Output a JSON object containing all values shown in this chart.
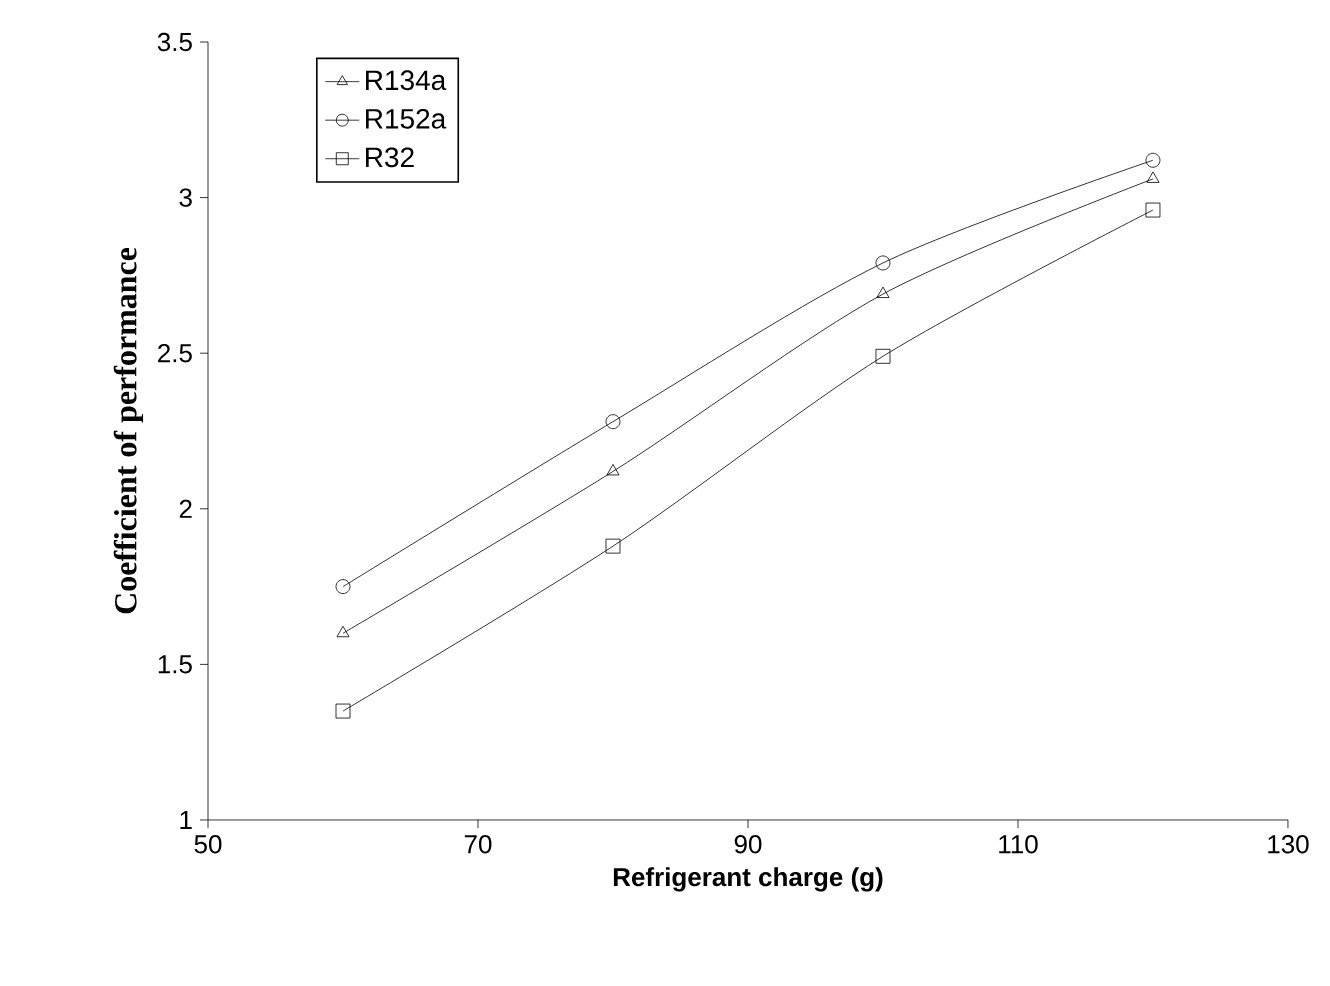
{
  "chart_data": {
    "type": "line",
    "xlabel": "Refrigerant charge (g)",
    "ylabel": "Coefficient of performance",
    "x": [
      60,
      80,
      100,
      120
    ],
    "series": [
      {
        "name": "R134a",
        "color": "#000000",
        "marker": "triangle",
        "values": [
          1.6,
          2.12,
          2.69,
          3.06
        ]
      },
      {
        "name": "R152a",
        "color": "#000000",
        "marker": "circle",
        "values": [
          1.75,
          2.28,
          2.79,
          3.12
        ]
      },
      {
        "name": "R32",
        "color": "#000000",
        "marker": "square",
        "values": [
          1.35,
          1.88,
          2.49,
          2.96
        ]
      }
    ],
    "xlim": [
      50,
      130
    ],
    "xticks": [
      50,
      70,
      90,
      110,
      130
    ],
    "ylim": [
      1,
      3.5
    ],
    "yticks": [
      1,
      1.5,
      2,
      2.5,
      3,
      3.5
    ],
    "legend": "top left",
    "grid": false,
    "line_style": "solid"
  }
}
